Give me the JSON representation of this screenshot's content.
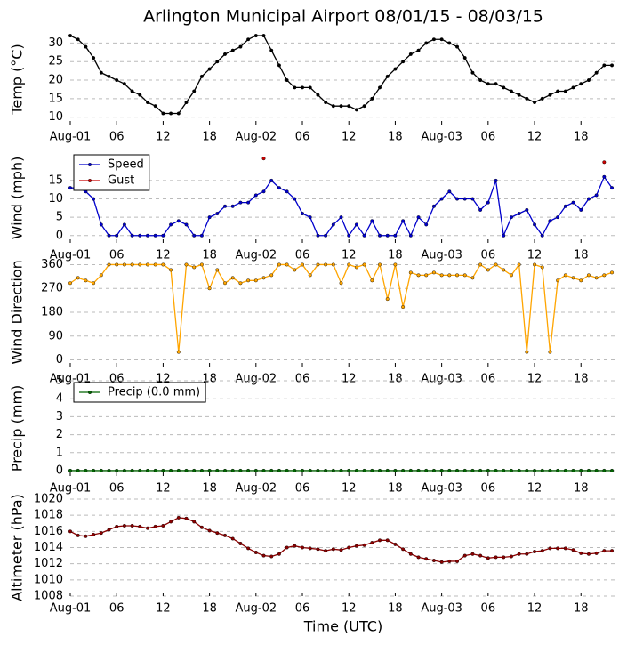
{
  "title": "Arlington Municipal Airport 08/01/15 - 08/03/15",
  "xlabel": "Time (UTC)",
  "chart_data": [
    {
      "type": "line",
      "ylabel": "Temp (°C)",
      "color": "#000000",
      "legend": false,
      "x": [
        0,
        1,
        2,
        3,
        4,
        5,
        6,
        7,
        8,
        9,
        10,
        11,
        12,
        13,
        14,
        15,
        16,
        17,
        18,
        19,
        20,
        21,
        22,
        23,
        24,
        25,
        26,
        27,
        28,
        29,
        30,
        31,
        32,
        33,
        34,
        35,
        36,
        37,
        38,
        39,
        40,
        41,
        42,
        43,
        44,
        45,
        46,
        47,
        48,
        49,
        50,
        51,
        52,
        53,
        54,
        55,
        56,
        57,
        58,
        59,
        60,
        61,
        62,
        63,
        64,
        65,
        66,
        67,
        68,
        69,
        70
      ],
      "values": [
        32,
        31,
        29,
        26,
        22,
        21,
        20,
        19,
        17,
        16,
        14,
        13,
        11,
        11,
        11,
        14,
        17,
        21,
        23,
        25,
        27,
        28,
        29,
        31,
        32,
        32,
        28,
        24,
        20,
        18,
        18,
        18,
        16,
        14,
        13,
        13,
        13,
        12,
        13,
        15,
        18,
        21,
        23,
        25,
        27,
        28,
        30,
        31,
        31,
        30,
        29,
        26,
        22,
        20,
        19,
        19,
        18,
        17,
        16,
        15,
        14,
        15,
        16,
        17,
        17,
        18,
        19,
        20,
        22,
        24,
        24
      ],
      "xlim": [
        0,
        70.8
      ],
      "ylim": [
        8,
        32.5
      ],
      "yticks": [
        10,
        15,
        20,
        25,
        30
      ],
      "xticks": [
        {
          "value": 0,
          "label": "Aug-01"
        },
        {
          "value": 6,
          "label": "06"
        },
        {
          "value": 12,
          "label": "12"
        },
        {
          "value": 18,
          "label": "18"
        },
        {
          "value": 24,
          "label": "Aug-02"
        },
        {
          "value": 30,
          "label": "06"
        },
        {
          "value": 36,
          "label": "12"
        },
        {
          "value": 42,
          "label": "18"
        },
        {
          "value": 48,
          "label": "Aug-03"
        },
        {
          "value": 54,
          "label": "06"
        },
        {
          "value": 60,
          "label": "12"
        },
        {
          "value": 66,
          "label": "18"
        }
      ],
      "grid": true
    },
    {
      "type": "line",
      "ylabel": "Wind (mph)",
      "legend": "upper left",
      "x": [
        0,
        1,
        2,
        3,
        4,
        5,
        6,
        7,
        8,
        9,
        10,
        11,
        12,
        13,
        14,
        15,
        16,
        17,
        18,
        19,
        20,
        21,
        22,
        23,
        24,
        25,
        26,
        27,
        28,
        29,
        30,
        31,
        32,
        33,
        34,
        35,
        36,
        37,
        38,
        39,
        40,
        41,
        42,
        43,
        44,
        45,
        46,
        47,
        48,
        49,
        50,
        51,
        52,
        53,
        54,
        55,
        56,
        57,
        58,
        59,
        60,
        61,
        62,
        63,
        64,
        65,
        66,
        67,
        68,
        69,
        70
      ],
      "series": [
        {
          "name": "Speed",
          "color": "#0000cc",
          "values": [
            13,
            13,
            12,
            10,
            3,
            0,
            0,
            3,
            0,
            0,
            0,
            0,
            0,
            3,
            4,
            3,
            0,
            0,
            5,
            6,
            8,
            8,
            9,
            9,
            11,
            12,
            15,
            13,
            12,
            10,
            6,
            5,
            0,
            0,
            3,
            5,
            0,
            3,
            0,
            4,
            0,
            0,
            0,
            4,
            0,
            5,
            3,
            8,
            10,
            12,
            10,
            10,
            10,
            7,
            9,
            15,
            0,
            5,
            6,
            7,
            3,
            0,
            4,
            5,
            8,
            9,
            7,
            10,
            11,
            16,
            13
          ]
        },
        {
          "name": "Gust",
          "color": "#cc0000",
          "markers_only": true,
          "values": [
            null,
            null,
            null,
            null,
            null,
            null,
            null,
            null,
            null,
            null,
            null,
            null,
            null,
            null,
            null,
            null,
            null,
            null,
            null,
            null,
            null,
            null,
            null,
            null,
            null,
            21,
            null,
            null,
            null,
            null,
            null,
            null,
            null,
            null,
            null,
            null,
            null,
            null,
            null,
            null,
            null,
            null,
            null,
            null,
            null,
            null,
            null,
            null,
            null,
            null,
            null,
            null,
            null,
            null,
            null,
            null,
            null,
            null,
            null,
            null,
            null,
            null,
            null,
            null,
            null,
            null,
            null,
            null,
            null,
            20,
            null
          ]
        }
      ],
      "xlim": [
        0,
        70.8
      ],
      "ylim": [
        -2,
        22.5
      ],
      "yticks": [
        0,
        5,
        10,
        15
      ],
      "xticks": [
        {
          "value": 0,
          "label": "Aug-01"
        },
        {
          "value": 6,
          "label": "06"
        },
        {
          "value": 12,
          "label": "12"
        },
        {
          "value": 18,
          "label": "18"
        },
        {
          "value": 24,
          "label": "Aug-02"
        },
        {
          "value": 30,
          "label": "06"
        },
        {
          "value": 36,
          "label": "12"
        },
        {
          "value": 42,
          "label": "18"
        },
        {
          "value": 48,
          "label": "Aug-03"
        },
        {
          "value": 54,
          "label": "06"
        },
        {
          "value": 60,
          "label": "12"
        },
        {
          "value": 66,
          "label": "18"
        }
      ],
      "grid": true
    },
    {
      "type": "line",
      "ylabel": "Wind Direction",
      "color": "#ffa500",
      "legend": false,
      "x": [
        0,
        1,
        2,
        3,
        4,
        5,
        6,
        7,
        8,
        9,
        10,
        11,
        12,
        13,
        14,
        15,
        16,
        17,
        18,
        19,
        20,
        21,
        22,
        23,
        24,
        25,
        26,
        27,
        28,
        29,
        30,
        31,
        32,
        33,
        34,
        35,
        36,
        37,
        38,
        39,
        40,
        41,
        42,
        43,
        44,
        45,
        46,
        47,
        48,
        49,
        50,
        51,
        52,
        53,
        54,
        55,
        56,
        57,
        58,
        59,
        60,
        61,
        62,
        63,
        64,
        65,
        66,
        67,
        68,
        69,
        70
      ],
      "values": [
        290,
        310,
        300,
        290,
        320,
        360,
        360,
        360,
        360,
        360,
        360,
        360,
        360,
        340,
        30,
        360,
        350,
        360,
        270,
        340,
        290,
        310,
        290,
        300,
        300,
        310,
        320,
        360,
        360,
        340,
        360,
        320,
        360,
        360,
        360,
        290,
        360,
        350,
        360,
        300,
        360,
        230,
        360,
        200,
        330,
        320,
        320,
        330,
        320,
        320,
        320,
        320,
        310,
        360,
        340,
        360,
        340,
        320,
        360,
        30,
        360,
        350,
        30,
        300,
        320,
        310,
        300,
        320,
        310,
        320,
        330
      ],
      "xlim": [
        0,
        70.8
      ],
      "ylim": [
        -25,
        385
      ],
      "yticks": [
        0,
        90,
        180,
        270,
        360
      ],
      "xticks": [
        {
          "value": 0,
          "label": "Aug-01"
        },
        {
          "value": 6,
          "label": "06"
        },
        {
          "value": 12,
          "label": "12"
        },
        {
          "value": 18,
          "label": "18"
        },
        {
          "value": 24,
          "label": "Aug-02"
        },
        {
          "value": 30,
          "label": "06"
        },
        {
          "value": 36,
          "label": "12"
        },
        {
          "value": 42,
          "label": "18"
        },
        {
          "value": 48,
          "label": "Aug-03"
        },
        {
          "value": 54,
          "label": "06"
        },
        {
          "value": 60,
          "label": "12"
        },
        {
          "value": 66,
          "label": "18"
        }
      ],
      "grid": true
    },
    {
      "type": "line",
      "ylabel": "Precip (mm)",
      "legend": "upper left",
      "x": [
        0,
        1,
        2,
        3,
        4,
        5,
        6,
        7,
        8,
        9,
        10,
        11,
        12,
        13,
        14,
        15,
        16,
        17,
        18,
        19,
        20,
        21,
        22,
        23,
        24,
        25,
        26,
        27,
        28,
        29,
        30,
        31,
        32,
        33,
        34,
        35,
        36,
        37,
        38,
        39,
        40,
        41,
        42,
        43,
        44,
        45,
        46,
        47,
        48,
        49,
        50,
        51,
        52,
        53,
        54,
        55,
        56,
        57,
        58,
        59,
        60,
        61,
        62,
        63,
        64,
        65,
        66,
        67,
        68,
        69,
        70
      ],
      "series": [
        {
          "name": "Precip (0.0 mm)",
          "color": "#006400",
          "values": [
            0,
            0,
            0,
            0,
            0,
            0,
            0,
            0,
            0,
            0,
            0,
            0,
            0,
            0,
            0,
            0,
            0,
            0,
            0,
            0,
            0,
            0,
            0,
            0,
            0,
            0,
            0,
            0,
            0,
            0,
            0,
            0,
            0,
            0,
            0,
            0,
            0,
            0,
            0,
            0,
            0,
            0,
            0,
            0,
            0,
            0,
            0,
            0,
            0,
            0,
            0,
            0,
            0,
            0,
            0,
            0,
            0,
            0,
            0,
            0,
            0,
            0,
            0,
            0,
            0,
            0,
            0,
            0,
            0,
            0,
            0
          ]
        }
      ],
      "xlim": [
        0,
        70.8
      ],
      "ylim": [
        -0.3,
        5
      ],
      "yticks": [
        0,
        1,
        2,
        3,
        4,
        5
      ],
      "xticks": [
        {
          "value": 0,
          "label": "Aug-01"
        },
        {
          "value": 6,
          "label": "06"
        },
        {
          "value": 12,
          "label": "12"
        },
        {
          "value": 18,
          "label": "18"
        },
        {
          "value": 24,
          "label": "Aug-02"
        },
        {
          "value": 30,
          "label": "06"
        },
        {
          "value": 36,
          "label": "12"
        },
        {
          "value": 42,
          "label": "18"
        },
        {
          "value": 48,
          "label": "Aug-03"
        },
        {
          "value": 54,
          "label": "06"
        },
        {
          "value": 60,
          "label": "12"
        },
        {
          "value": 66,
          "label": "18"
        }
      ],
      "grid": true
    },
    {
      "type": "line",
      "ylabel": "Altimeter (hPa)",
      "color": "#8b0000",
      "legend": false,
      "x": [
        0,
        1,
        2,
        3,
        4,
        5,
        6,
        7,
        8,
        9,
        10,
        11,
        12,
        13,
        14,
        15,
        16,
        17,
        18,
        19,
        20,
        21,
        22,
        23,
        24,
        25,
        26,
        27,
        28,
        29,
        30,
        31,
        32,
        33,
        34,
        35,
        36,
        37,
        38,
        39,
        40,
        41,
        42,
        43,
        44,
        45,
        46,
        47,
        48,
        49,
        50,
        51,
        52,
        53,
        54,
        55,
        56,
        57,
        58,
        59,
        60,
        61,
        62,
        63,
        64,
        65,
        66,
        67,
        68,
        69,
        70
      ],
      "values": [
        1016,
        1015.5,
        1015.4,
        1015.6,
        1015.8,
        1016.2,
        1016.6,
        1016.7,
        1016.7,
        1016.6,
        1016.4,
        1016.6,
        1016.7,
        1017.2,
        1017.7,
        1017.6,
        1017.2,
        1016.5,
        1016.1,
        1015.8,
        1015.5,
        1015.1,
        1014.5,
        1013.9,
        1013.4,
        1013,
        1012.9,
        1013.2,
        1014,
        1014.2,
        1014,
        1013.9,
        1013.8,
        1013.6,
        1013.8,
        1013.7,
        1014,
        1014.2,
        1014.3,
        1014.6,
        1014.9,
        1014.9,
        1014.4,
        1013.8,
        1013.2,
        1012.8,
        1012.6,
        1012.4,
        1012.2,
        1012.3,
        1012.3,
        1013,
        1013.2,
        1013,
        1012.7,
        1012.8,
        1012.8,
        1012.9,
        1013.2,
        1013.2,
        1013.5,
        1013.6,
        1013.9,
        1013.9,
        1013.9,
        1013.7,
        1013.3,
        1013.2,
        1013.3,
        1013.6,
        1013.6
      ],
      "xlim": [
        0,
        70.8
      ],
      "ylim": [
        1008,
        1020
      ],
      "yticks": [
        1008,
        1010,
        1012,
        1014,
        1016,
        1018,
        1020
      ],
      "xticks": [
        {
          "value": 0,
          "label": "Aug-01"
        },
        {
          "value": 6,
          "label": "06"
        },
        {
          "value": 12,
          "label": "12"
        },
        {
          "value": 18,
          "label": "18"
        },
        {
          "value": 24,
          "label": "Aug-02"
        },
        {
          "value": 30,
          "label": "06"
        },
        {
          "value": 36,
          "label": "12"
        },
        {
          "value": 42,
          "label": "18"
        },
        {
          "value": 48,
          "label": "Aug-03"
        },
        {
          "value": 54,
          "label": "06"
        },
        {
          "value": 60,
          "label": "12"
        },
        {
          "value": 66,
          "label": "18"
        }
      ],
      "grid": true
    }
  ]
}
